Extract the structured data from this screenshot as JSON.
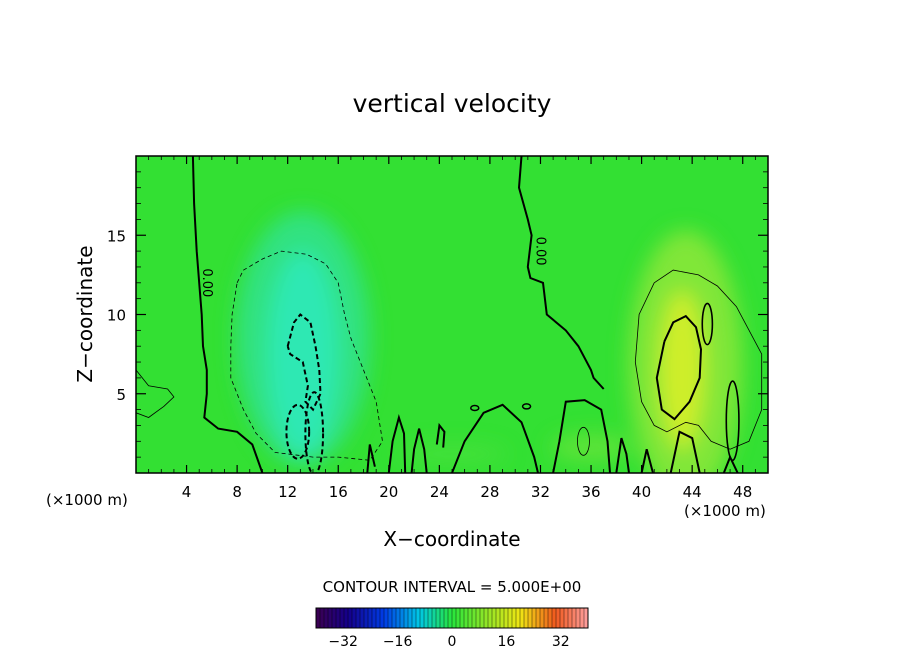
{
  "chart_data": {
    "type": "heatmap",
    "title": "vertical velocity",
    "xlabel": "X−coordinate",
    "ylabel": "Z−coordinate",
    "x_unit": "(×1000 m)",
    "x_unit_right": "(×1000 m)",
    "xlim": [
      0,
      50
    ],
    "ylim": [
      0,
      20
    ],
    "x_ticks": [
      4,
      8,
      12,
      16,
      20,
      24,
      28,
      32,
      36,
      40,
      44,
      48
    ],
    "y_ticks": [
      5,
      10,
      15
    ],
    "contour_interval_text": "CONTOUR INTERVAL = 5.000E+00",
    "zero_contour_label": "0.00",
    "colorbar": {
      "range": [
        -40,
        40
      ],
      "ticks": [
        -32,
        -16,
        0,
        16,
        32
      ],
      "tick_labels": [
        "−32",
        "−16",
        "0",
        "16",
        "32"
      ]
    },
    "features": [
      {
        "kind": "downdraft",
        "x": 13,
        "z": 8,
        "min_value": -15
      },
      {
        "kind": "updraft",
        "x": 43.5,
        "z": 6.5,
        "max_value": 12
      }
    ]
  }
}
